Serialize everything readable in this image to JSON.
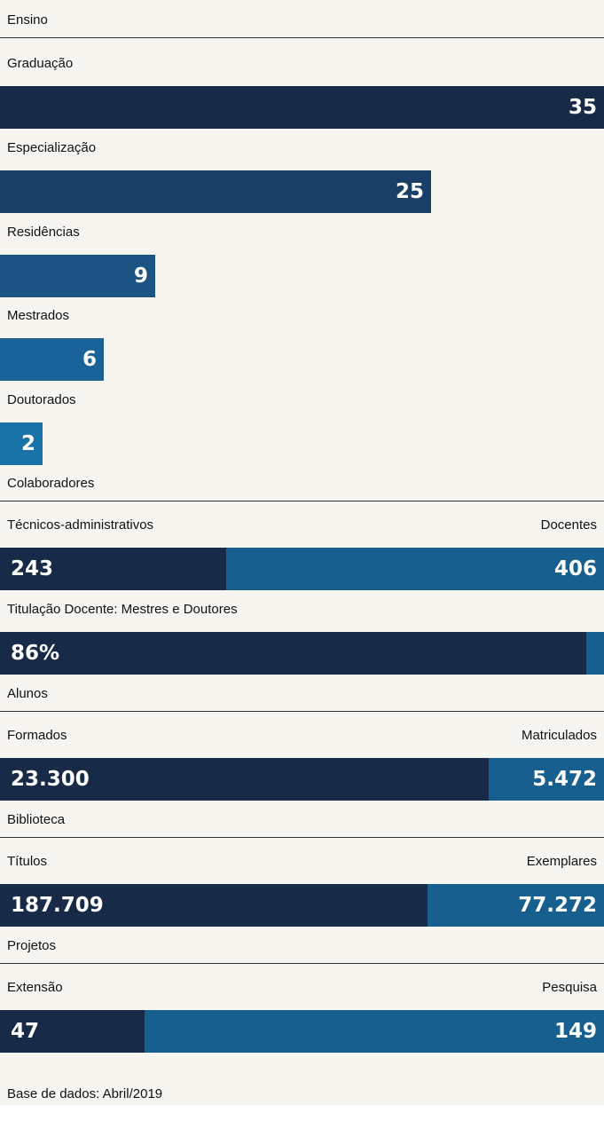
{
  "colors": {
    "background": "#f6f5f0",
    "dark_navy": "#172a48",
    "mid_navy": "#1a3f66",
    "steel_blue": "#165f8e",
    "bright_blue": "#1a73a8"
  },
  "sections": {
    "ensino": "Ensino",
    "colaboradores": "Colaboradores",
    "alunos": "Alunos",
    "biblioteca": "Biblioteca",
    "projetos": "Projetos"
  },
  "chart_data": [
    {
      "type": "bar",
      "title": "Ensino",
      "orientation": "horizontal",
      "categories": [
        "Graduação",
        "Especialização",
        "Residências",
        "Mestrados",
        "Doutorados"
      ],
      "values": [
        35,
        25,
        9,
        6,
        2
      ],
      "value_labels": [
        "35",
        "25",
        "9",
        "6",
        "2"
      ],
      "xlim": [
        0,
        35
      ],
      "colors": [
        "#172a48",
        "#1a3f66",
        "#1b5483",
        "#1a6399",
        "#1a73a8"
      ]
    },
    {
      "type": "bar",
      "title": "Colaboradores",
      "stacked": true,
      "series": [
        {
          "name": "Técnicos-administrativos",
          "values": [
            243
          ],
          "label": "243"
        },
        {
          "name": "Docentes",
          "values": [
            406
          ],
          "label": "406"
        }
      ]
    },
    {
      "type": "bar",
      "title": "Titulação Docente: Mestres e Doutores",
      "values": [
        86
      ],
      "value_labels": [
        "86%"
      ],
      "xlim": [
        0,
        100
      ]
    },
    {
      "type": "bar",
      "title": "Alunos",
      "stacked": true,
      "series": [
        {
          "name": "Formados",
          "values": [
            23300
          ],
          "label": "23.300"
        },
        {
          "name": "Matriculados",
          "values": [
            5472
          ],
          "label": "5.472"
        }
      ]
    },
    {
      "type": "bar",
      "title": "Biblioteca",
      "stacked": true,
      "series": [
        {
          "name": "Títulos",
          "values": [
            187709
          ],
          "label": "187.709"
        },
        {
          "name": "Exemplares",
          "values": [
            77272
          ],
          "label": "77.272"
        }
      ]
    },
    {
      "type": "bar",
      "title": "Projetos",
      "stacked": true,
      "series": [
        {
          "name": "Extensão",
          "values": [
            47
          ],
          "label": "47"
        },
        {
          "name": "Pesquisa",
          "values": [
            149
          ],
          "label": "149"
        }
      ]
    }
  ],
  "footer": {
    "source": "Base de dados: Abril/2019"
  }
}
